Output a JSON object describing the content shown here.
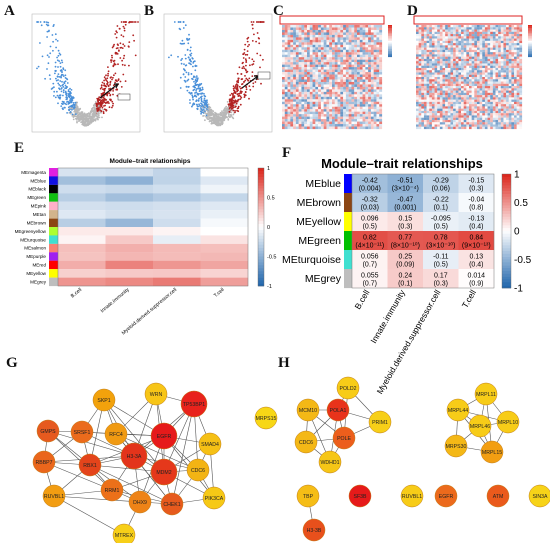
{
  "panel_letters": {
    "A": "A",
    "B": "B",
    "C": "C",
    "D": "D",
    "E": "E",
    "F": "F",
    "G": "G",
    "H": "H"
  },
  "panel_E": {
    "title": "Module–trait relationships",
    "rows": [
      "MEmagenta",
      "MEblue",
      "MEblack",
      "MEgreen",
      "MEpink",
      "MEtan",
      "MEbrown",
      "MEgreenyellow",
      "MEturquoise",
      "MEsalmon",
      "MEpurple",
      "MEred",
      "MEyellow",
      "MEgrey"
    ],
    "row_colors": [
      "#e020e0",
      "#1010e0",
      "#000000",
      "#10c010",
      "#ffb0c8",
      "#d2b48c",
      "#8b4513",
      "#adff2f",
      "#40e0d0",
      "#fa8072",
      "#a020f0",
      "#ff0000",
      "#ffff00",
      "#bebebe"
    ],
    "columns": [
      "B.cell",
      "Innate.immunity",
      "Myeloid.derived.suppressor.cell",
      "T.cell"
    ],
    "values": [
      [
        -0.18,
        -0.2,
        -0.28,
        0.0
      ],
      [
        -0.42,
        -0.51,
        -0.29,
        -0.15
      ],
      [
        -0.22,
        -0.25,
        -0.21,
        -0.07
      ],
      [
        -0.32,
        -0.42,
        -0.35,
        -0.27
      ],
      [
        -0.2,
        -0.22,
        -0.2,
        -0.15
      ],
      [
        -0.15,
        -0.2,
        -0.18,
        -0.1
      ],
      [
        -0.32,
        -0.47,
        -0.22,
        -0.04
      ],
      [
        0.1,
        0.1,
        0.05,
        0.0
      ],
      [
        0.05,
        0.25,
        -0.11,
        0.13
      ],
      [
        0.3,
        0.37,
        0.32,
        0.3
      ],
      [
        0.28,
        0.34,
        0.31,
        0.33
      ],
      [
        0.38,
        0.58,
        0.49,
        0.42
      ],
      [
        0.22,
        0.25,
        0.26,
        0.2
      ],
      [
        0.5,
        0.55,
        0.62,
        0.45
      ]
    ],
    "scale_ticks": [
      "1",
      "0.5",
      "0",
      "-0.5",
      "-1"
    ]
  },
  "panel_F": {
    "title": "Module–trait relationships",
    "rows": [
      "MEblue",
      "MEbrown",
      "MEyellow",
      "MEgreen",
      "MEturquoise",
      "MEgrey"
    ],
    "row_colors": [
      "#0000ff",
      "#8b4513",
      "#ffff00",
      "#00c000",
      "#40e0d0",
      "#bebebe"
    ],
    "columns": [
      "B.cell",
      "Innate.immunity",
      "Myeloid.derived.suppressor.cell",
      "T.cell"
    ],
    "values": [
      [
        -0.42,
        -0.51,
        -0.29,
        -0.15
      ],
      [
        -0.32,
        -0.47,
        -0.22,
        -0.04
      ],
      [
        0.096,
        0.15,
        -0.095,
        -0.13
      ],
      [
        0.82,
        0.77,
        0.78,
        0.84
      ],
      [
        0.056,
        0.25,
        -0.11,
        0.13
      ],
      [
        0.055,
        0.24,
        0.17,
        0.014
      ]
    ],
    "pvalues": [
      [
        "(0.004)",
        "(3×10⁻⁴)",
        "(0.06)",
        "(0.3)"
      ],
      [
        "(0.03)",
        "(0.001)",
        "(0.1)",
        "(0.8)"
      ],
      [
        "(0.5)",
        "(0.3)",
        "(0.5)",
        "(0.4)"
      ],
      [
        "(4×10⁻¹¹)",
        "(8×10⁻¹⁰)",
        "(3×10⁻¹⁰)",
        "(9×10⁻¹³)"
      ],
      [
        "(0.7)",
        "(0.09)",
        "(0.5)",
        "(0.4)"
      ],
      [
        "(0.7)",
        "(0.1)",
        "(0.3)",
        "(0.9)"
      ]
    ],
    "value_labels": [
      [
        "-0.42",
        "-0.51",
        "-0.29",
        "-0.15"
      ],
      [
        "-0.32",
        "-0.47",
        "-0.22",
        "-0.04"
      ],
      [
        "0.096",
        "0.15",
        "-0.095",
        "-0.13"
      ],
      [
        "0.82",
        "0.77",
        "0.78",
        "0.84"
      ],
      [
        "0.056",
        "0.25",
        "-0.11",
        "0.13"
      ],
      [
        "0.055",
        "0.24",
        "0.17",
        "0.014"
      ]
    ],
    "scale_ticks": [
      "1",
      "0.5",
      "0",
      "-0.5",
      "-1"
    ]
  },
  "panel_G": {
    "nodes": [
      {
        "id": "SKP1",
        "label": "SKP1",
        "color": "#f2a20c"
      },
      {
        "id": "WRN",
        "label": "WRN",
        "color": "#f7c517"
      },
      {
        "id": "TP53BP1",
        "label": "TP53BP1",
        "color": "#e8231c"
      },
      {
        "id": "MRPS15",
        "label": "MRPS15",
        "color": "#f7d716"
      },
      {
        "id": "GMPS",
        "label": "GMPS",
        "color": "#e65a1f"
      },
      {
        "id": "SRSF1",
        "label": "SRSF1",
        "color": "#eb6b1c"
      },
      {
        "id": "RFC4",
        "label": "RFC4",
        "color": "#f09a12"
      },
      {
        "id": "EGFR",
        "label": "EGFR",
        "color": "#e61a1a"
      },
      {
        "id": "SMAD4",
        "label": "SMAD4",
        "color": "#f5c015"
      },
      {
        "id": "H3-3A",
        "label": "H3-3A",
        "color": "#e3341b"
      },
      {
        "id": "RBBP7",
        "label": "RBBP7",
        "color": "#ea661c"
      },
      {
        "id": "RBX1",
        "label": "RBX1",
        "color": "#e4441b"
      },
      {
        "id": "MDM2",
        "label": "MDM2",
        "color": "#e5381b"
      },
      {
        "id": "CDC6",
        "label": "CDC6",
        "color": "#f3b414"
      },
      {
        "id": "RRM1",
        "label": "RRM1",
        "color": "#ec7019"
      },
      {
        "id": "PIK3CA",
        "label": "PIK3CA",
        "color": "#f6c916"
      },
      {
        "id": "RUVBL1",
        "label": "RUVBL1",
        "color": "#f29d12"
      },
      {
        "id": "DHX9",
        "label": "DHX9",
        "color": "#ee8317"
      },
      {
        "id": "CHEK1",
        "label": "CHEK1",
        "color": "#e65a1d"
      },
      {
        "id": "MTREX",
        "label": "MTREX",
        "color": "#f7cf18"
      }
    ],
    "edges": [
      [
        "SKP1",
        "RFC4"
      ],
      [
        "SKP1",
        "H3-3A"
      ],
      [
        "SKP1",
        "RBX1"
      ],
      [
        "SKP1",
        "MDM2"
      ],
      [
        "SKP1",
        "EGFR"
      ],
      [
        "SKP1",
        "SRSF1"
      ],
      [
        "WRN",
        "EGFR"
      ],
      [
        "WRN",
        "TP53BP1"
      ],
      [
        "WRN",
        "RFC4"
      ],
      [
        "WRN",
        "MDM2"
      ],
      [
        "WRN",
        "H3-3A"
      ],
      [
        "TP53BP1",
        "EGFR"
      ],
      [
        "TP53BP1",
        "MDM2"
      ],
      [
        "TP53BP1",
        "H3-3A"
      ],
      [
        "TP53BP1",
        "CDC6"
      ],
      [
        "TP53BP1",
        "SMAD4"
      ],
      [
        "TP53BP1",
        "CHEK1"
      ],
      [
        "GMPS",
        "SRSF1"
      ],
      [
        "GMPS",
        "RBX1"
      ],
      [
        "GMPS",
        "RBBP7"
      ],
      [
        "GMPS",
        "H3-3A"
      ],
      [
        "GMPS",
        "RRM1"
      ],
      [
        "SRSF1",
        "H3-3A"
      ],
      [
        "SRSF1",
        "RFC4"
      ],
      [
        "SRSF1",
        "RBX1"
      ],
      [
        "SRSF1",
        "EGFR"
      ],
      [
        "SRSF1",
        "RBBP7"
      ],
      [
        "RFC4",
        "H3-3A"
      ],
      [
        "RFC4",
        "EGFR"
      ],
      [
        "RFC4",
        "CDC6"
      ],
      [
        "RFC4",
        "CHEK1"
      ],
      [
        "RFC4",
        "MDM2"
      ],
      [
        "EGFR",
        "H3-3A"
      ],
      [
        "EGFR",
        "MDM2"
      ],
      [
        "EGFR",
        "SMAD4"
      ],
      [
        "EGFR",
        "PIK3CA"
      ],
      [
        "EGFR",
        "CDC6"
      ],
      [
        "EGFR",
        "RBX1"
      ],
      [
        "EGFR",
        "DHX9"
      ],
      [
        "SMAD4",
        "MDM2"
      ],
      [
        "SMAD4",
        "PIK3CA"
      ],
      [
        "SMAD4",
        "CDC6"
      ],
      [
        "H3-3A",
        "RBX1"
      ],
      [
        "H3-3A",
        "MDM2"
      ],
      [
        "H3-3A",
        "RRM1"
      ],
      [
        "H3-3A",
        "DHX9"
      ],
      [
        "H3-3A",
        "CHEK1"
      ],
      [
        "H3-3A",
        "RBBP7"
      ],
      [
        "H3-3A",
        "CDC6"
      ],
      [
        "RBBP7",
        "RBX1"
      ],
      [
        "RBBP7",
        "RUVBL1"
      ],
      [
        "RBBP7",
        "RRM1"
      ],
      [
        "RBX1",
        "MDM2"
      ],
      [
        "RBX1",
        "RRM1"
      ],
      [
        "RBX1",
        "RUVBL1"
      ],
      [
        "RBX1",
        "DHX9"
      ],
      [
        "RBX1",
        "CHEK1"
      ],
      [
        "MDM2",
        "CDC6"
      ],
      [
        "MDM2",
        "CHEK1"
      ],
      [
        "MDM2",
        "DHX9"
      ],
      [
        "MDM2",
        "PIK3CA"
      ],
      [
        "MDM2",
        "RRM1"
      ],
      [
        "CDC6",
        "CHEK1"
      ],
      [
        "CDC6",
        "PIK3CA"
      ],
      [
        "RRM1",
        "DHX9"
      ],
      [
        "RRM1",
        "RUVBL1"
      ],
      [
        "RRM1",
        "CHEK1"
      ],
      [
        "RUVBL1",
        "DHX9"
      ],
      [
        "DHX9",
        "CHEK1"
      ],
      [
        "DHX9",
        "MTREX"
      ],
      [
        "CHEK1",
        "PIK3CA"
      ],
      [
        "RUVBL1",
        "MTREX"
      ]
    ]
  },
  "panel_H": {
    "nodes": [
      {
        "id": "POLD2",
        "label": "POLD2",
        "color": "#f7cc18"
      },
      {
        "id": "MCM10",
        "label": "MCM10",
        "color": "#f4b816"
      },
      {
        "id": "POLA1",
        "label": "POLA1",
        "color": "#e8331b"
      },
      {
        "id": "POLE",
        "label": "POLE",
        "color": "#ec5e1c"
      },
      {
        "id": "PRIM1",
        "label": "PRIM1",
        "color": "#f7cf18"
      },
      {
        "id": "CDC6",
        "label": "CDC6",
        "color": "#f4b816"
      },
      {
        "id": "WDHD1",
        "label": "WDHD1",
        "color": "#f6c616"
      },
      {
        "id": "MRPL11",
        "label": "MRPL11",
        "color": "#f7cc18"
      },
      {
        "id": "MRPL44",
        "label": "MRPL44",
        "color": "#f7cc18"
      },
      {
        "id": "MRPL46",
        "label": "MRPL46",
        "color": "#f7cc18"
      },
      {
        "id": "MRPL10",
        "label": "MRPL10",
        "color": "#f7cc18"
      },
      {
        "id": "MRPS30",
        "label": "MRPS30",
        "color": "#f4b816"
      },
      {
        "id": "MRPL15",
        "label": "MRPL15",
        "color": "#f29e12"
      },
      {
        "id": "TBP",
        "label": "TBP",
        "color": "#f5bd16"
      },
      {
        "id": "SF3B",
        "label": "SF3B",
        "color": "#e61a1a"
      },
      {
        "id": "RUVBL1",
        "label": "RUVBL1",
        "color": "#f7cc18"
      },
      {
        "id": "EGFR",
        "label": "EGFR",
        "color": "#ec6a1c"
      },
      {
        "id": "ATM",
        "label": "ATM",
        "color": "#ea5a1c"
      },
      {
        "id": "SIN3A",
        "label": "SIN3A",
        "color": "#f7d318"
      },
      {
        "id": "H3-3B",
        "label": "H3-3B",
        "color": "#e8501c"
      }
    ],
    "edges": [
      [
        "POLD2",
        "POLA1"
      ],
      [
        "POLD2",
        "POLE"
      ],
      [
        "POLD2",
        "PRIM1"
      ],
      [
        "MCM10",
        "POLA1"
      ],
      [
        "MCM10",
        "POLE"
      ],
      [
        "MCM10",
        "CDC6"
      ],
      [
        "MCM10",
        "WDHD1"
      ],
      [
        "POLA1",
        "POLE"
      ],
      [
        "POLA1",
        "PRIM1"
      ],
      [
        "POLA1",
        "CDC6"
      ],
      [
        "POLA1",
        "WDHD1"
      ],
      [
        "POLE",
        "PRIM1"
      ],
      [
        "POLE",
        "CDC6"
      ],
      [
        "POLE",
        "WDHD1"
      ],
      [
        "CDC6",
        "WDHD1"
      ],
      [
        "MRPL11",
        "MRPL44"
      ],
      [
        "MRPL11",
        "MRPL46"
      ],
      [
        "MRPL11",
        "MRPL10"
      ],
      [
        "MRPL11",
        "MRPL15"
      ],
      [
        "MRPL44",
        "MRPL46"
      ],
      [
        "MRPL44",
        "MRPS30"
      ],
      [
        "MRPL44",
        "MRPL15"
      ],
      [
        "MRPL44",
        "MRPL10"
      ],
      [
        "MRPL46",
        "MRPL10"
      ],
      [
        "MRPL46",
        "MRPS30"
      ],
      [
        "MRPL46",
        "MRPL15"
      ],
      [
        "MRPL10",
        "MRPL15"
      ],
      [
        "MRPS30",
        "MRPL15"
      ],
      [
        "TBP",
        "H3-3B"
      ]
    ]
  }
}
